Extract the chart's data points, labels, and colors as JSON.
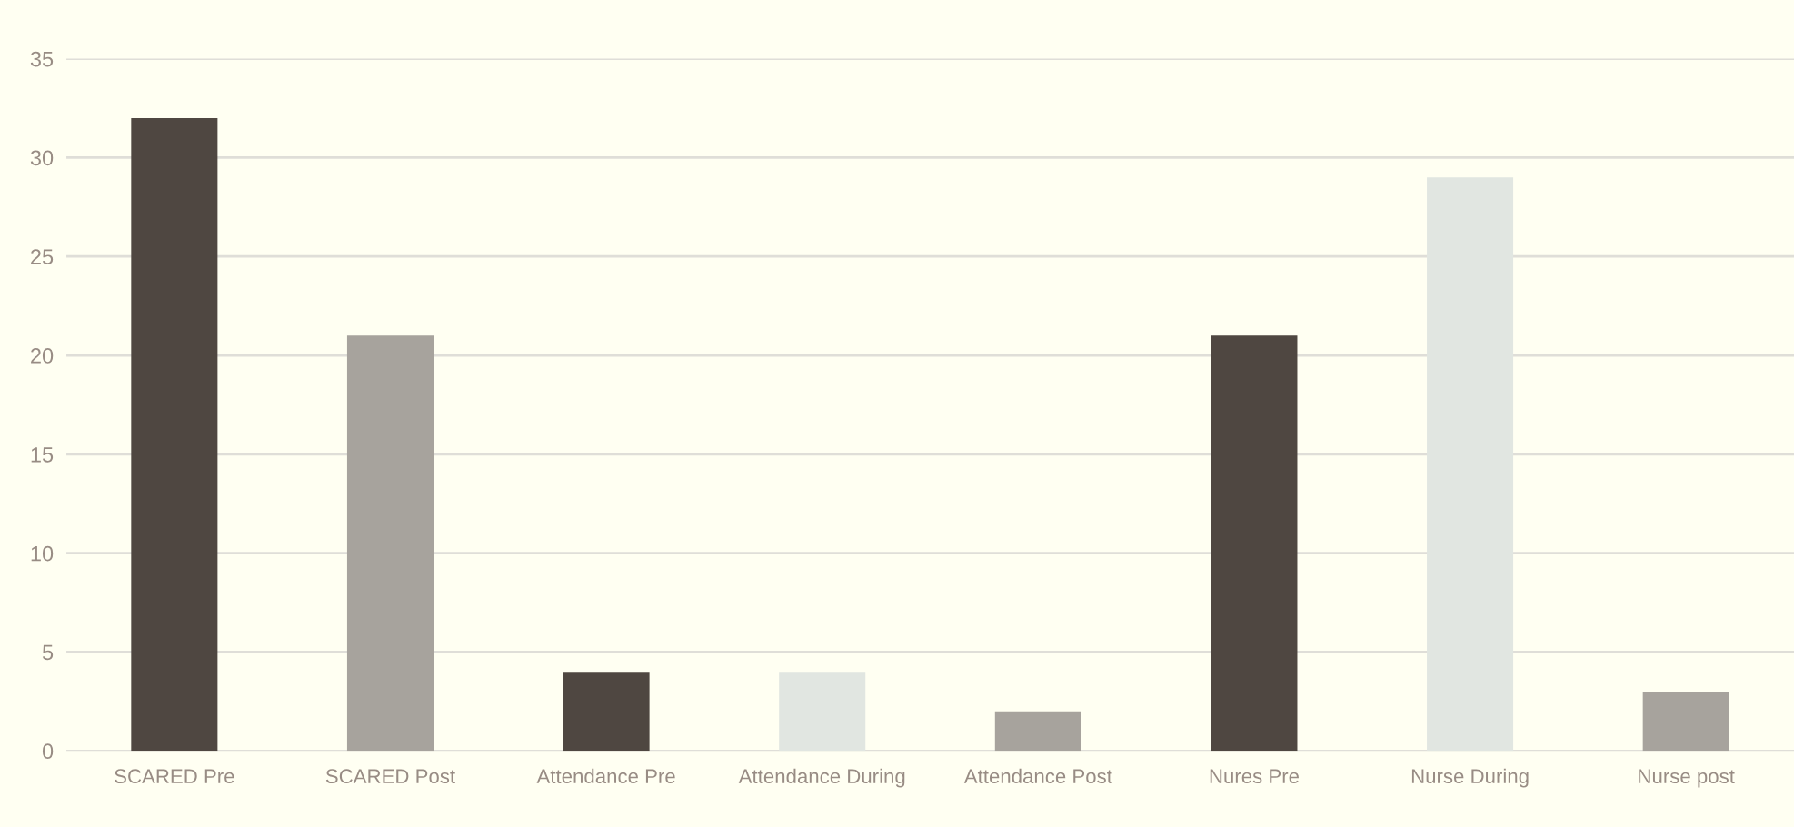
{
  "chart_data": {
    "type": "bar",
    "categories": [
      "SCARED Pre",
      "SCARED Post",
      "Attendance Pre",
      "Attendance During",
      "Attendance Post",
      "Nures Pre",
      "Nurse During",
      "Nurse post"
    ],
    "values": [
      32,
      21,
      4,
      4,
      2,
      21,
      29,
      3
    ],
    "colors": [
      "#4f4741",
      "#a7a39d",
      "#4f4741",
      "#e1e6e1",
      "#a7a39d",
      "#4f4741",
      "#e1e6e1",
      "#a7a39d"
    ],
    "ylim": [
      0,
      35
    ],
    "yticks": [
      0,
      5,
      10,
      15,
      20,
      25,
      30,
      35
    ],
    "grid": "y"
  }
}
